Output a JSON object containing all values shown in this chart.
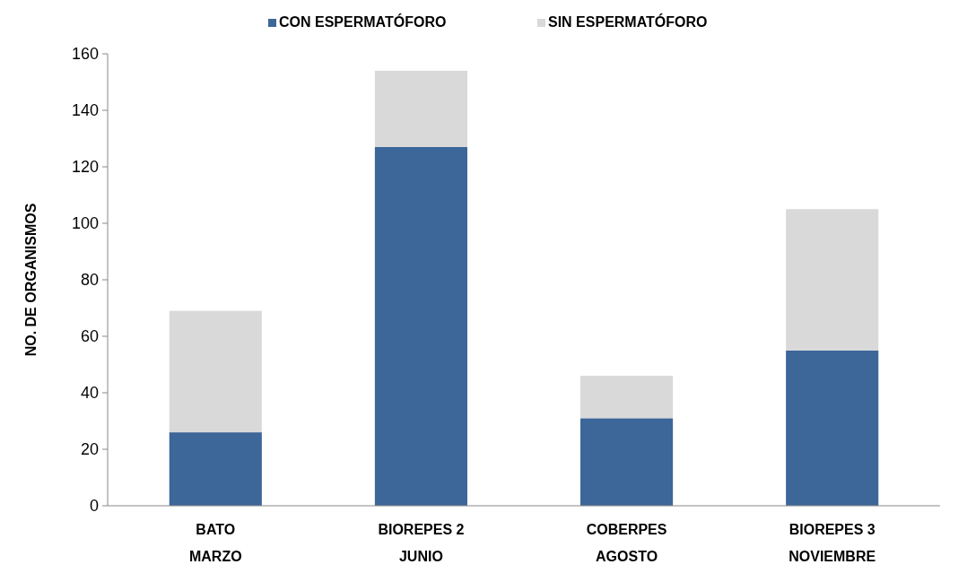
{
  "chart_data": {
    "type": "bar",
    "stacked": true,
    "ylabel": "NO. DE ORGANISMOS",
    "categories": [
      "BATO\nMARZO",
      "BIOREPES 2\nJUNIO",
      "COBERPES\nAGOSTO",
      "BIOREPES 3\nNOVIEMBRE"
    ],
    "series": [
      {
        "name": "CON ESPERMATÓFORO",
        "color": "#3d6699",
        "values": [
          26,
          127,
          31,
          55
        ]
      },
      {
        "name": "SIN ESPERMATÓFORO",
        "color": "#d9d9d9",
        "values": [
          43,
          27,
          15,
          50
        ]
      }
    ],
    "ylim": [
      0,
      160
    ],
    "yticks": [
      0,
      20,
      40,
      60,
      80,
      100,
      120,
      140,
      160
    ],
    "legend": "top",
    "grid": false
  }
}
